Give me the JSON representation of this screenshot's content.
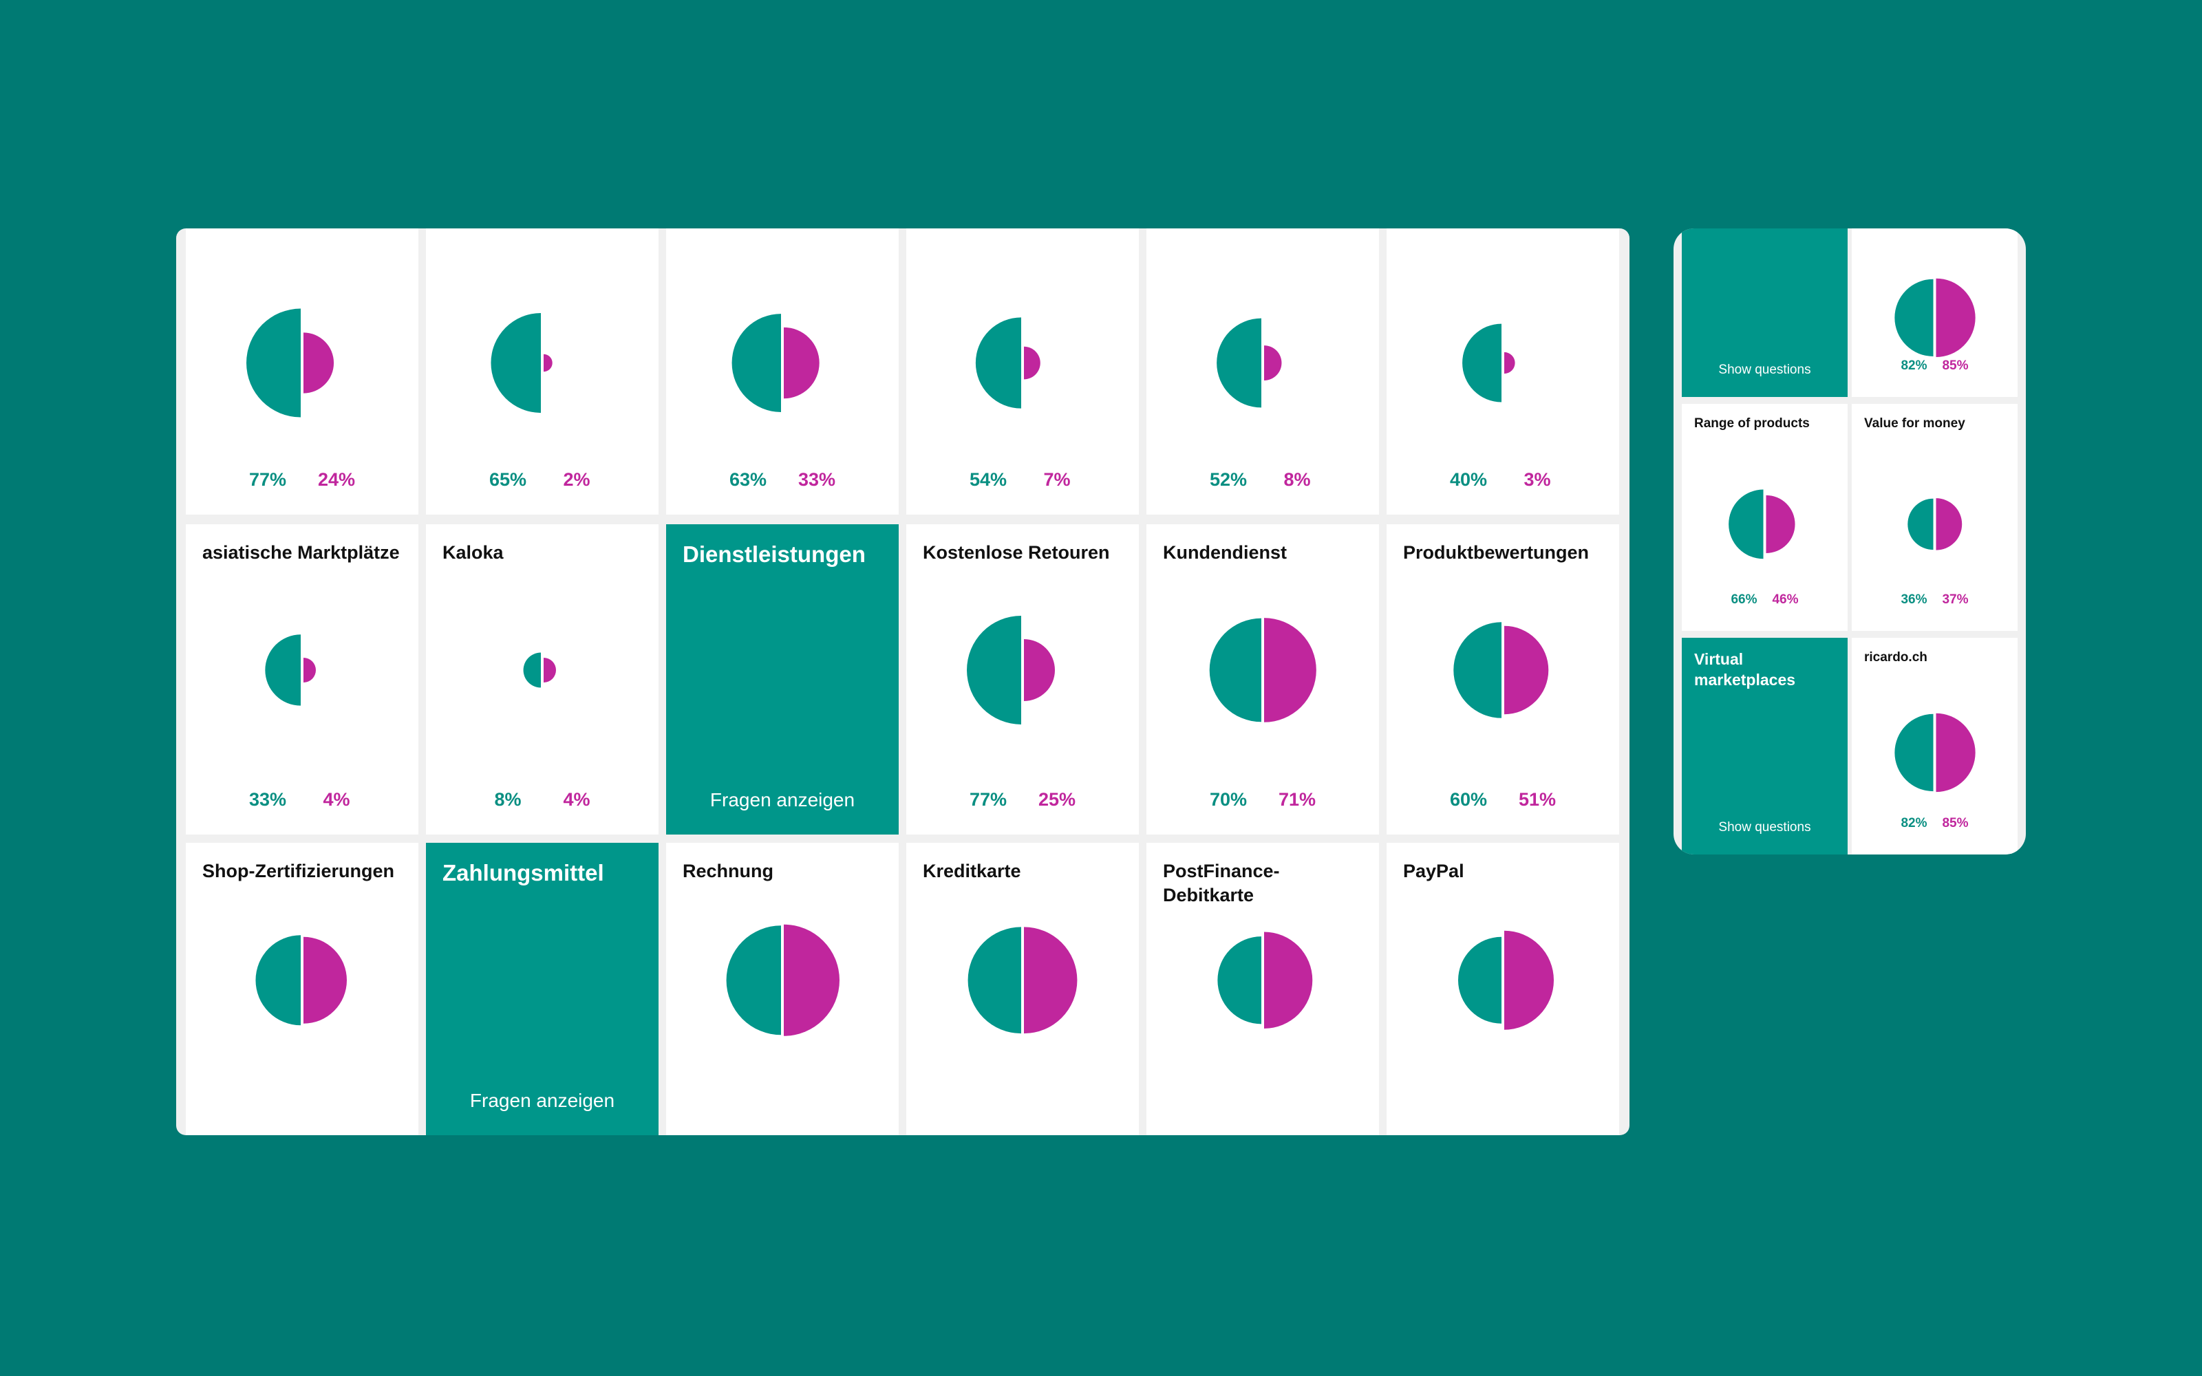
{
  "colors": {
    "background": "#007a73",
    "primary": "#00968a",
    "secondary": "#c0269d",
    "tile": "#ffffff"
  },
  "main": {
    "tiles": [
      {
        "title": "",
        "a": "77%",
        "b": "24%",
        "pa": 0.77,
        "pb": 0.24
      },
      {
        "title": "",
        "a": "65%",
        "b": "2%",
        "pa": 0.65,
        "pb": 0.02
      },
      {
        "title": "",
        "a": "63%",
        "b": "33%",
        "pa": 0.63,
        "pb": 0.33
      },
      {
        "title": "",
        "a": "54%",
        "b": "7%",
        "pa": 0.54,
        "pb": 0.07
      },
      {
        "title": "",
        "a": "52%",
        "b": "8%",
        "pa": 0.52,
        "pb": 0.08
      },
      {
        "title": "",
        "a": "40%",
        "b": "3%",
        "pa": 0.4,
        "pb": 0.03
      },
      {
        "title": "asiatische Marktplätze",
        "a": "33%",
        "b": "4%",
        "pa": 0.33,
        "pb": 0.04
      },
      {
        "title": "Kaloka",
        "a": "8%",
        "b": "4%",
        "pa": 0.08,
        "pb": 0.04
      },
      {
        "category": true,
        "title": "Dienstleistungen",
        "link": "Fragen anzeigen"
      },
      {
        "title": "Kostenlose Retouren",
        "a": "77%",
        "b": "25%",
        "pa": 0.77,
        "pb": 0.25
      },
      {
        "title": "Kundendienst",
        "a": "70%",
        "b": "71%",
        "pa": 0.7,
        "pb": 0.71
      },
      {
        "title": "Produktbewertungen",
        "a": "60%",
        "b": "51%",
        "pa": 0.6,
        "pb": 0.51
      },
      {
        "title": "Shop-Zertifizierungen",
        "pa": 0.53,
        "pb": 0.49
      },
      {
        "category": true,
        "title": "Zahlungsmittel",
        "link": "Fragen anzeigen"
      },
      {
        "title": "Rechnung",
        "pa": 0.78,
        "pb": 0.81
      },
      {
        "title": "Kreditkarte",
        "pa": 0.74,
        "pb": 0.74
      },
      {
        "title": "PostFinance-\nDebitkarte",
        "pa": 0.5,
        "pb": 0.61
      },
      {
        "title": "PayPal",
        "pa": 0.49,
        "pb": 0.64
      }
    ]
  },
  "side": {
    "tiles": [
      {
        "category": true,
        "title": "",
        "link": "Show questions"
      },
      {
        "title": "",
        "a": "82%",
        "b": "85%",
        "pa": 0.82,
        "pb": 0.85
      },
      {
        "title": "Range of products",
        "a": "66%",
        "b": "46%",
        "pa": 0.66,
        "pb": 0.46
      },
      {
        "title": "Value for money",
        "a": "36%",
        "b": "37%",
        "pa": 0.36,
        "pb": 0.37
      },
      {
        "category": true,
        "title": "Virtual\nmarketplaces",
        "link": "Show questions"
      },
      {
        "title": "ricardo.ch",
        "a": "82%",
        "b": "85%",
        "pa": 0.82,
        "pb": 0.85
      }
    ]
  }
}
